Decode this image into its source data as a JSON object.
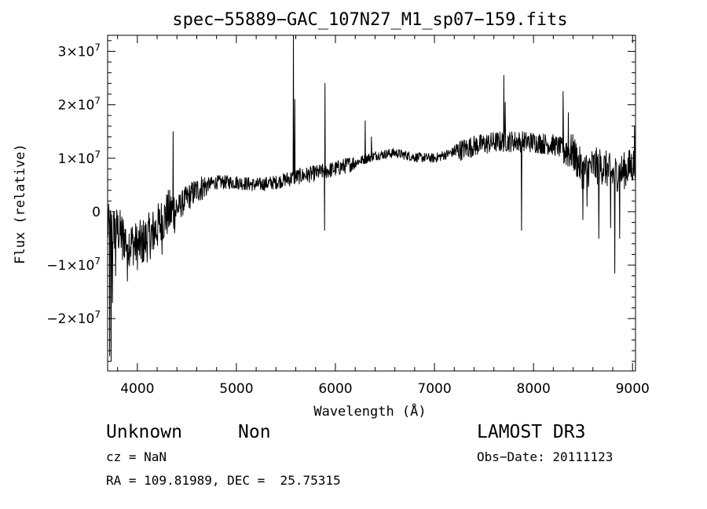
{
  "chart_data": {
    "type": "line",
    "title": "spec−55889−GAC_107N27_M1_sp07−159.fits",
    "xlabel": "Wavelength (Å)",
    "ylabel": "Flux (relative)",
    "xlim": [
      3700,
      9030
    ],
    "ylim": [
      -29800000,
      33000000
    ],
    "x_ticks": [
      4000,
      5000,
      6000,
      7000,
      8000,
      9000
    ],
    "y_ticks": [
      {
        "value": 30000000,
        "mantissa": "3",
        "exp": "7"
      },
      {
        "value": 20000000,
        "mantissa": "2",
        "exp": "7"
      },
      {
        "value": 10000000,
        "mantissa": "1",
        "exp": "7"
      },
      {
        "value": 0,
        "mantissa": "0",
        "exp": ""
      },
      {
        "value": -10000000,
        "mantissa": "−1",
        "exp": "7"
      },
      {
        "value": -20000000,
        "mantissa": "−2",
        "exp": "7"
      }
    ],
    "grid": false,
    "continuum_anchors": [
      [
        3700,
        -3000000
      ],
      [
        3800,
        -3500000
      ],
      [
        3900,
        -5500000
      ],
      [
        4000,
        -6500000
      ],
      [
        4100,
        -5000000
      ],
      [
        4200,
        -3000000
      ],
      [
        4300,
        -500000
      ],
      [
        4400,
        500000
      ],
      [
        4500,
        2500000
      ],
      [
        4600,
        4000000
      ],
      [
        4700,
        5000000
      ],
      [
        4800,
        5500000
      ],
      [
        5000,
        5500000
      ],
      [
        5200,
        5000000
      ],
      [
        5400,
        5500000
      ],
      [
        5600,
        6500000
      ],
      [
        5800,
        7200000
      ],
      [
        6000,
        8000000
      ],
      [
        6200,
        9200000
      ],
      [
        6400,
        10500000
      ],
      [
        6600,
        11000000
      ],
      [
        6800,
        10200000
      ],
      [
        7000,
        10000000
      ],
      [
        7200,
        11200000
      ],
      [
        7400,
        12300000
      ],
      [
        7600,
        13000000
      ],
      [
        7800,
        13200000
      ],
      [
        8000,
        13000000
      ],
      [
        8200,
        12500000
      ],
      [
        8400,
        11000000
      ],
      [
        8500,
        7500000
      ],
      [
        8600,
        8500000
      ],
      [
        8700,
        8500000
      ],
      [
        8800,
        7000000
      ],
      [
        8900,
        7500000
      ],
      [
        9030,
        9000000
      ]
    ],
    "features": [
      [
        3720,
        -27000000
      ],
      [
        3735,
        -28000000
      ],
      [
        3750,
        -17000000
      ],
      [
        3780,
        -12000000
      ],
      [
        3850,
        -9000000
      ],
      [
        3900,
        -13000000
      ],
      [
        3960,
        -10000000
      ],
      [
        4050,
        -9500000
      ],
      [
        4150,
        -7000000
      ],
      [
        4250,
        -8000000
      ],
      [
        4360,
        15000000
      ],
      [
        5577,
        33000000
      ],
      [
        5590,
        21000000
      ],
      [
        5890,
        -3500000
      ],
      [
        5895,
        24000000
      ],
      [
        6300,
        17000000
      ],
      [
        6365,
        14000000
      ],
      [
        7700,
        25500000
      ],
      [
        7715,
        20500000
      ],
      [
        7880,
        -3500000
      ],
      [
        8300,
        22500000
      ],
      [
        8350,
        18500000
      ],
      [
        8500,
        -1500000
      ],
      [
        8540,
        1000000
      ],
      [
        8660,
        -5000000
      ],
      [
        8780,
        -3000000
      ],
      [
        8820,
        -11500000
      ],
      [
        8870,
        -5000000
      ],
      [
        9020,
        16000000
      ]
    ]
  },
  "footer": {
    "object_class": "Unknown",
    "subclass": "Non",
    "cz": "cz = NaN",
    "coords": "RA = 109.81989, DEC =  25.75315",
    "survey": "LAMOST DR3",
    "obs_date": "Obs−Date: 20111123"
  }
}
